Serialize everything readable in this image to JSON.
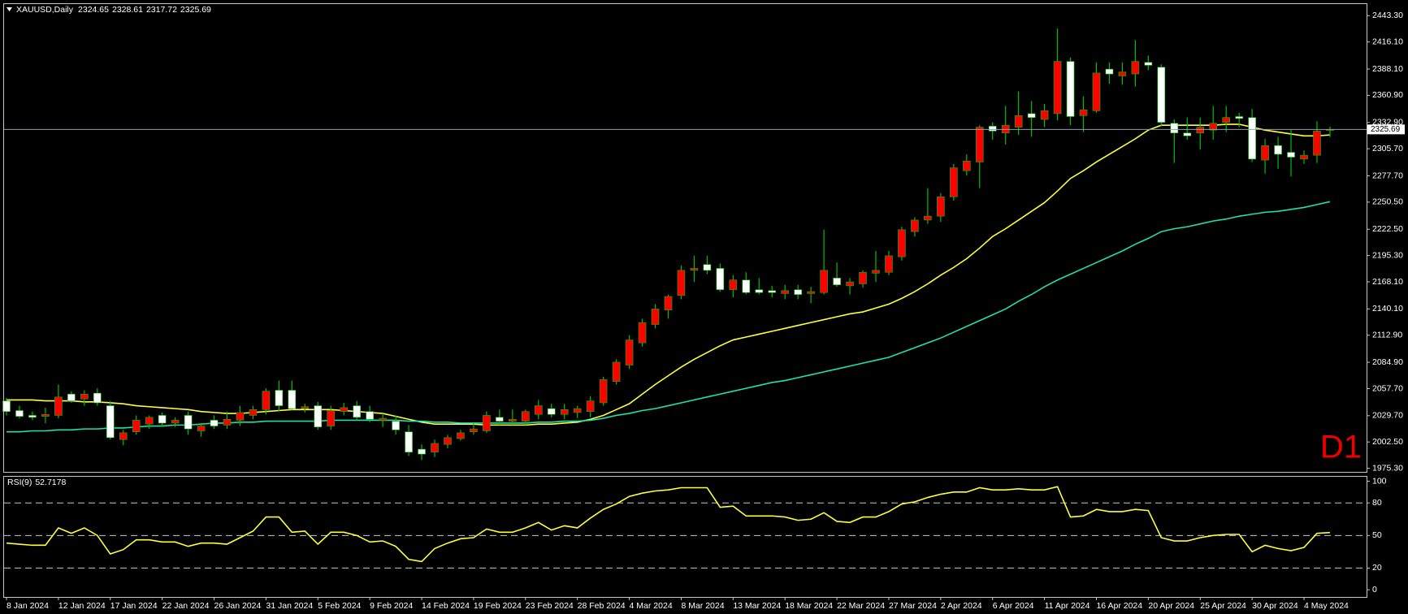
{
  "chart_data": {
    "type": "candlestick",
    "symbol": "XAUUSD,Daily",
    "watermark": "D1",
    "categories": [
      "8 Jan 2024",
      null,
      null,
      null,
      "12 Jan 2024",
      null,
      null,
      null,
      "17 Jan 2024",
      null,
      null,
      null,
      "22 Jan 2024",
      null,
      null,
      null,
      "26 Jan 2024",
      null,
      null,
      null,
      "31 Jan 2024",
      null,
      null,
      null,
      "5 Feb 2024",
      null,
      null,
      null,
      "9 Feb 2024",
      null,
      null,
      null,
      "14 Feb 2024",
      null,
      null,
      null,
      "19 Feb 2024",
      null,
      null,
      null,
      "23 Feb 2024",
      null,
      null,
      null,
      "28 Feb 2024",
      null,
      null,
      null,
      "4 Mar 2024",
      null,
      null,
      null,
      "8 Mar 2024",
      null,
      null,
      null,
      "13 Mar 2024",
      null,
      null,
      null,
      "18 Mar 2024",
      null,
      null,
      null,
      "22 Mar 2024",
      null,
      null,
      null,
      "27 Mar 2024",
      null,
      null,
      null,
      "2 Apr 2024",
      null,
      null,
      null,
      "6 Apr 2024",
      null,
      null,
      null,
      "11 Apr 2024",
      null,
      null,
      null,
      "16 Apr 2024",
      null,
      null,
      null,
      "20 Apr 2024",
      null,
      null,
      null,
      "25 Apr 2024",
      null,
      null,
      null,
      "30 Apr 2024",
      null,
      null,
      null,
      "4 May 2024",
      null,
      null
    ],
    "open": [
      2045,
      2035,
      2030,
      2029,
      2030,
      2052,
      2047,
      2053,
      2040,
      2005,
      2013,
      2021,
      2030,
      2022,
      2030,
      2014,
      2025,
      2020,
      2025,
      2030,
      2036,
      2056,
      2056,
      2037,
      2040,
      2019,
      2034,
      2040,
      2034,
      2025,
      2024,
      2013,
      1995,
      1992,
      2000,
      2006,
      2013,
      2014,
      2028,
      2024,
      2024,
      2031,
      2037,
      2031,
      2033,
      2034,
      2043,
      2065,
      2082,
      2105,
      2124,
      2139,
      2154,
      2180,
      2186,
      2182,
      2160,
      2170,
      2160,
      2159,
      2156,
      2160,
      2156,
      2157,
      2172,
      2164,
      2166,
      2177,
      2178,
      2194,
      2220,
      2232,
      2236,
      2256,
      2283,
      2292,
      2329,
      2322,
      2328,
      2342,
      2336,
      2342,
      2396,
      2340,
      2345,
      2388,
      2381,
      2383,
      2395,
      2390,
      2332,
      2322,
      2322,
      2325,
      2333,
      2339,
      2338,
      2294,
      2309,
      2302,
      2295,
      2299,
      2324.65
    ],
    "high": [
      2048,
      2040,
      2034,
      2038,
      2062,
      2055,
      2056,
      2058,
      2045,
      2015,
      2030,
      2030,
      2033,
      2028,
      2034,
      2022,
      2030,
      2034,
      2040,
      2040,
      2058,
      2066,
      2066,
      2042,
      2044,
      2040,
      2043,
      2045,
      2040,
      2032,
      2030,
      2020,
      2000,
      2005,
      2010,
      2015,
      2022,
      2034,
      2036,
      2036,
      2036,
      2046,
      2042,
      2042,
      2040,
      2050,
      2070,
      2088,
      2113,
      2130,
      2145,
      2155,
      2185,
      2195,
      2195,
      2187,
      2175,
      2178,
      2172,
      2164,
      2165,
      2165,
      2163,
      2222,
      2188,
      2172,
      2180,
      2200,
      2200,
      2225,
      2235,
      2265,
      2260,
      2290,
      2300,
      2330,
      2333,
      2350,
      2365,
      2355,
      2352,
      2430,
      2400,
      2360,
      2395,
      2395,
      2395,
      2418,
      2402,
      2393,
      2336,
      2338,
      2338,
      2350,
      2350,
      2343,
      2347,
      2316,
      2318,
      2325,
      2304,
      2334,
      2328.61
    ],
    "low": [
      2030,
      2027,
      2025,
      2022,
      2027,
      2043,
      2040,
      2040,
      2005,
      1999,
      2010,
      2016,
      2019,
      2018,
      2010,
      2008,
      2016,
      2016,
      2019,
      2026,
      2031,
      2034,
      2036,
      2033,
      2015,
      2015,
      2030,
      2025,
      2023,
      2018,
      2010,
      1988,
      1984,
      1987,
      1996,
      2004,
      2010,
      2012,
      2020,
      2020,
      2020,
      2026,
      2028,
      2026,
      2027,
      2028,
      2040,
      2062,
      2078,
      2101,
      2120,
      2130,
      2150,
      2168,
      2176,
      2158,
      2152,
      2155,
      2155,
      2152,
      2150,
      2150,
      2146,
      2155,
      2163,
      2155,
      2162,
      2168,
      2175,
      2190,
      2215,
      2228,
      2230,
      2252,
      2278,
      2265,
      2315,
      2310,
      2320,
      2318,
      2328,
      2335,
      2330,
      2323,
      2343,
      2373,
      2372,
      2370,
      2387,
      2329,
      2291,
      2315,
      2305,
      2315,
      2323,
      2328,
      2292,
      2280,
      2285,
      2277,
      2290,
      2291,
      2317.72
    ],
    "close": [
      2034,
      2029,
      2028,
      2031,
      2049,
      2045,
      2052,
      2043,
      2007,
      2012,
      2025,
      2028,
      2022,
      2025,
      2016,
      2019,
      2019,
      2026,
      2033,
      2036,
      2055,
      2040,
      2037,
      2039,
      2018,
      2035,
      2038,
      2028,
      2026,
      2027,
      2015,
      1992,
      1990,
      2001,
      2007,
      2012,
      2016,
      2030,
      2024,
      2026,
      2034,
      2040,
      2031,
      2036,
      2037,
      2045,
      2067,
      2085,
      2108,
      2126,
      2140,
      2153,
      2180,
      2182,
      2180,
      2160,
      2170,
      2157,
      2157,
      2157,
      2159,
      2155,
      2158,
      2180,
      2165,
      2168,
      2178,
      2180,
      2195,
      2222,
      2232,
      2236,
      2256,
      2286,
      2293,
      2328,
      2324,
      2330,
      2340,
      2338,
      2345,
      2396,
      2339,
      2346,
      2384,
      2383,
      2385,
      2396,
      2392,
      2333,
      2322,
      2319,
      2328,
      2332,
      2338,
      2337,
      2295,
      2309,
      2300,
      2297,
      2299,
      2324,
      2325.69
    ],
    "colors": {
      "up": "#ff0000",
      "down": "#ffffff",
      "wick": "#00c000",
      "price_line": "#8fa0b0"
    },
    "overlays": [
      {
        "color": "#ffff3c",
        "values": [
          2046,
          2046,
          2046,
          2045,
          2045,
          2045,
          2044,
          2044,
          2043,
          2042,
          2040,
          2039,
          2038,
          2037,
          2036,
          2034,
          2033,
          2032,
          2032,
          2033,
          2034,
          2035,
          2036,
          2036,
          2036,
          2036,
          2035,
          2034,
          2033,
          2032,
          2029,
          2026,
          2023,
          2021,
          2021,
          2021,
          2021,
          2020,
          2020,
          2020,
          2020,
          2021,
          2021,
          2022,
          2023,
          2026,
          2030,
          2036,
          2042,
          2052,
          2062,
          2071,
          2080,
          2088,
          2095,
          2102,
          2108,
          2111,
          2114,
          2117,
          2120,
          2123,
          2126,
          2129,
          2132,
          2135,
          2137,
          2141,
          2145,
          2151,
          2158,
          2166,
          2175,
          2183,
          2192,
          2203,
          2215,
          2223,
          2232,
          2241,
          2250,
          2262,
          2275,
          2283,
          2292,
          2300,
          2308,
          2316,
          2325,
          2330,
          2330,
          2330,
          2330,
          2330,
          2331,
          2331,
          2328,
          2325,
          2323,
          2321,
          2319,
          2319,
          2320
        ]
      },
      {
        "color": "#22e0a8",
        "values": [
          2013,
          2013,
          2014,
          2014,
          2015,
          2015,
          2016,
          2016,
          2017,
          2017,
          2018,
          2019,
          2019,
          2020,
          2020,
          2021,
          2022,
          2022,
          2023,
          2023,
          2024,
          2024,
          2024,
          2024,
          2024,
          2025,
          2025,
          2025,
          2025,
          2025,
          2025,
          2024,
          2024,
          2023,
          2023,
          2022,
          2022,
          2022,
          2022,
          2022,
          2022,
          2023,
          2023,
          2024,
          2024,
          2025,
          2027,
          2030,
          2032,
          2035,
          2037,
          2040,
          2043,
          2046,
          2049,
          2052,
          2055,
          2058,
          2061,
          2064,
          2066,
          2069,
          2072,
          2075,
          2078,
          2081,
          2084,
          2087,
          2090,
          2095,
          2100,
          2105,
          2110,
          2116,
          2122,
          2128,
          2134,
          2140,
          2148,
          2155,
          2163,
          2170,
          2176,
          2182,
          2188,
          2194,
          2200,
          2207,
          2213,
          2220,
          2223,
          2225,
          2228,
          2231,
          2233,
          2236,
          2238,
          2240,
          2241,
          2243,
          2245,
          2248,
          2251
        ]
      }
    ],
    "ylim": [
      1971.6,
      2455.3
    ],
    "yticks": [
      {
        "value": 2443.3,
        "label": "2443.30"
      },
      {
        "value": 2416.1,
        "label": "2416.10"
      },
      {
        "value": 2388.1,
        "label": "2388.10"
      },
      {
        "value": 2360.9,
        "label": "2360.90"
      },
      {
        "value": 2332.9,
        "label": "2332.90"
      },
      {
        "value": 2305.7,
        "label": "2305.70"
      },
      {
        "value": 2277.7,
        "label": "2277.70"
      },
      {
        "value": 2250.5,
        "label": "2250.50"
      },
      {
        "value": 2222.5,
        "label": "2222.50"
      },
      {
        "value": 2195.3,
        "label": "2195.30"
      },
      {
        "value": 2168.1,
        "label": "2168.10"
      },
      {
        "value": 2140.1,
        "label": "2140.10"
      },
      {
        "value": 2112.9,
        "label": "2112.90"
      },
      {
        "value": 2084.9,
        "label": "2084.90"
      },
      {
        "value": 2057.7,
        "label": "2057.70"
      },
      {
        "value": 2029.7,
        "label": "2029.70"
      },
      {
        "value": 2002.5,
        "label": "2002.50"
      },
      {
        "value": 1975.3,
        "label": "1975.30"
      }
    ],
    "indicator": {
      "type": "line",
      "title": "RSI(9)",
      "color": "#ffff3c",
      "values": [
        43,
        42,
        41,
        41,
        57,
        52,
        57,
        50,
        33,
        37,
        46,
        46,
        44,
        44,
        40,
        43,
        43,
        42,
        48,
        54,
        67,
        67,
        53,
        54,
        42,
        53,
        53,
        50,
        44,
        45,
        40,
        28,
        26,
        38,
        43,
        47,
        48,
        56,
        53,
        53,
        57,
        62,
        55,
        59,
        57,
        66,
        74,
        79,
        86,
        89,
        91,
        92,
        94,
        94,
        94,
        76,
        77,
        68,
        68,
        68,
        67,
        64,
        65,
        71,
        63,
        62,
        67,
        67,
        72,
        79,
        81,
        85,
        88,
        90,
        90,
        94,
        92,
        92,
        93,
        92,
        92,
        95,
        67,
        68,
        74,
        72,
        72,
        74,
        73,
        48,
        45,
        45,
        48,
        50,
        51,
        51,
        35,
        41,
        38,
        36,
        39,
        52,
        52.7178
      ],
      "ylim": [
        -6.6,
        104.1
      ],
      "yticks": [
        0,
        20,
        50,
        80,
        100
      ],
      "levels": [
        20,
        50,
        80
      ]
    }
  }
}
